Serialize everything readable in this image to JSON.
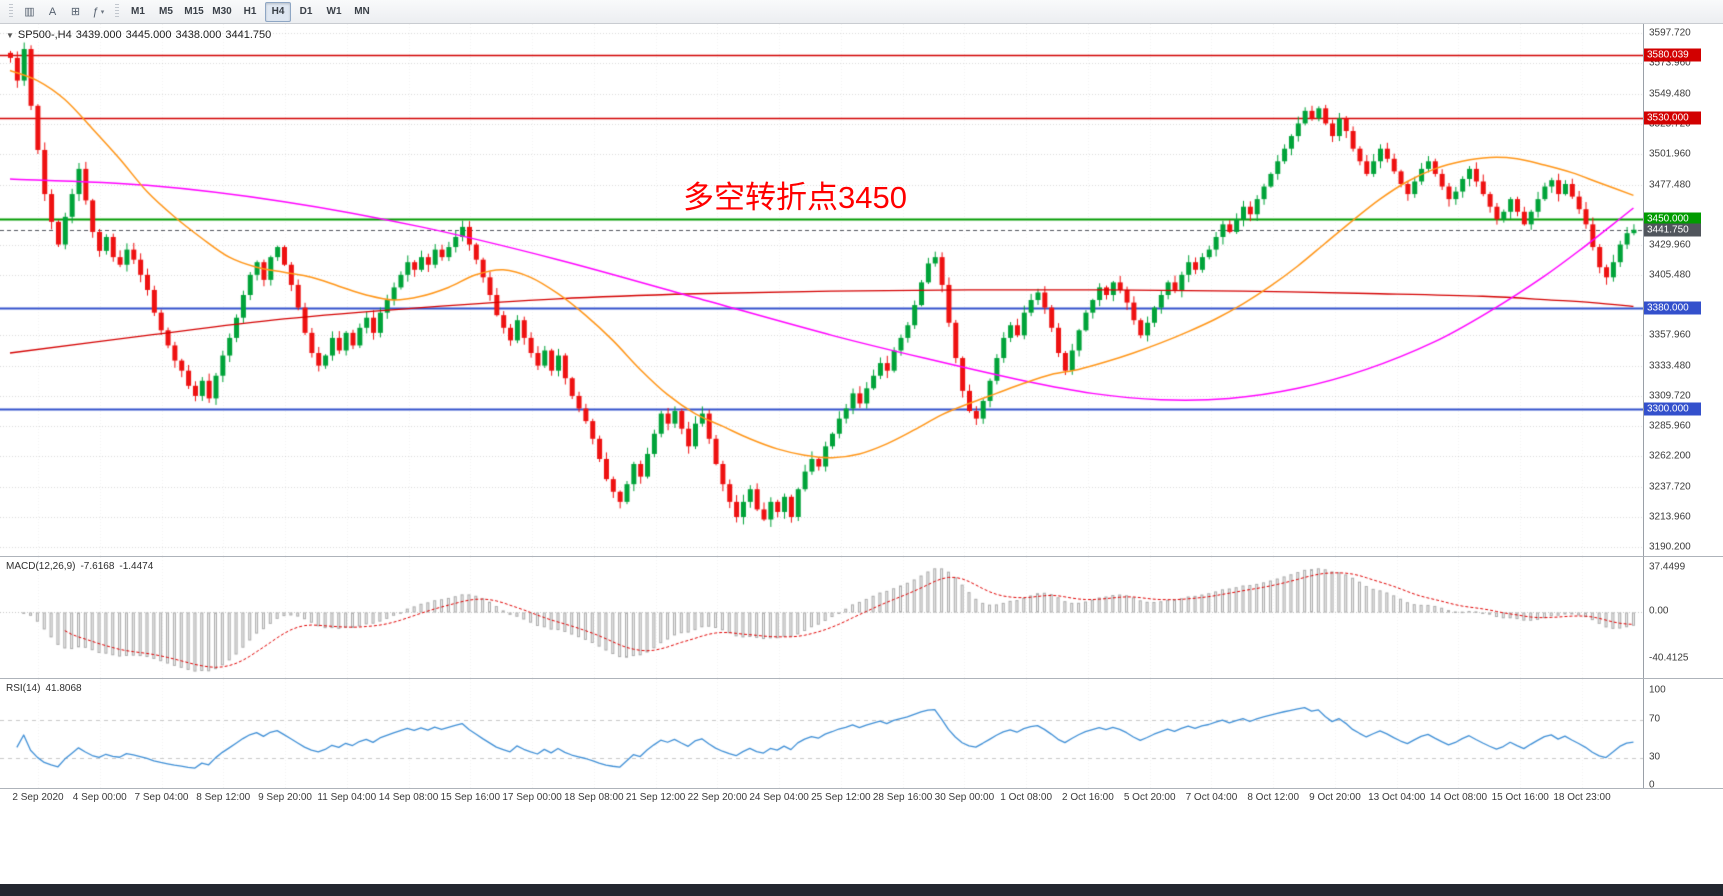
{
  "colors": {
    "up_candle": "#00a339",
    "down_candle": "#ee1111",
    "ma_fast": "#ff9517",
    "ma_medium": "#ff00ff",
    "ma_slow": "#d40000",
    "macd_histogram": "#adadad",
    "macd_signal": "#e00000",
    "rsi_line": "#3f8fd6",
    "resistance_line": "#d20000",
    "pivot_line": "#009b00",
    "support_line": "#3350cc",
    "current_price_tag": "#50555c",
    "annotation_text": "#ff0000"
  },
  "toolbar": {
    "icons": [
      {
        "name": "charts-icon",
        "glyph": "▥"
      },
      {
        "name": "text-cursor-icon",
        "glyph": "A"
      },
      {
        "name": "chart-window-icon",
        "glyph": "⊞"
      },
      {
        "name": "indicators-icon",
        "glyph": "ƒ",
        "caret": "▾"
      }
    ],
    "timeframes": [
      "M1",
      "M5",
      "M15",
      "M30",
      "H1",
      "H4",
      "D1",
      "W1",
      "MN"
    ],
    "selected_timeframe": "H4"
  },
  "chart_data": {
    "type": "candlestick",
    "symbol": "SP500-,H4",
    "ohlc_display": {
      "open": "3439.000",
      "high": "3445.000",
      "low": "3438.000",
      "close": "3441.750"
    },
    "annotation": "多空转折点3450",
    "y_axis": {
      "max": 3597.72,
      "min": 3190.2,
      "ticks": [
        "3597.720",
        "3573.960",
        "3549.480",
        "3525.720",
        "3501.960",
        "3477.480",
        "3429.960",
        "3405.480",
        "3357.960",
        "3333.480",
        "3309.720",
        "3285.960",
        "3262.200",
        "3237.720",
        "3213.960",
        "3190.200"
      ]
    },
    "x_axis": {
      "labels": [
        "2 Sep 2020",
        "4 Sep 00:00",
        "7 Sep 04:00",
        "8 Sep 12:00",
        "9 Sep 20:00",
        "11 Sep 04:00",
        "14 Sep 08:00",
        "15 Sep 16:00",
        "17 Sep 00:00",
        "18 Sep 08:00",
        "21 Sep 12:00",
        "22 Sep 20:00",
        "24 Sep 04:00",
        "25 Sep 12:00",
        "28 Sep 16:00",
        "30 Sep 00:00",
        "1 Oct 08:00",
        "2 Oct 16:00",
        "5 Oct 20:00",
        "7 Oct 04:00",
        "8 Oct 12:00",
        "9 Oct 20:00",
        "13 Oct 04:00",
        "14 Oct 08:00",
        "15 Oct 16:00",
        "18 Oct 23:00"
      ]
    },
    "levels": [
      {
        "label": "3580.039",
        "value": 3580.039,
        "color": "#d20000",
        "style": "solid",
        "width": 1.6
      },
      {
        "label": "3530.000",
        "value": 3530.0,
        "color": "#d20000",
        "style": "solid",
        "width": 1.6
      },
      {
        "label": "3450.000",
        "value": 3450.0,
        "color": "#009b00",
        "style": "solid",
        "width": 1.8
      },
      {
        "label": "3441.750",
        "value": 3441.75,
        "color": "#50555c",
        "style": "dashed",
        "width": 1
      },
      {
        "label": "3380.000",
        "value": 3380.0,
        "color": "#3350cc",
        "style": "solid",
        "width": 1.8
      },
      {
        "label": "3300.000",
        "value": 3300.0,
        "color": "#3350cc",
        "style": "solid",
        "width": 1.8
      }
    ],
    "closes": [
      3578,
      3560,
      3585,
      3540,
      3505,
      3470,
      3448,
      3430,
      3452,
      3470,
      3490,
      3465,
      3440,
      3425,
      3436,
      3420,
      3414,
      3426,
      3418,
      3406,
      3394,
      3376,
      3362,
      3350,
      3338,
      3330,
      3318,
      3310,
      3322,
      3308,
      3326,
      3342,
      3356,
      3372,
      3390,
      3406,
      3416,
      3402,
      3420,
      3428,
      3414,
      3398,
      3380,
      3360,
      3344,
      3334,
      3342,
      3356,
      3346,
      3360,
      3350,
      3364,
      3372,
      3360,
      3376,
      3386,
      3396,
      3406,
      3416,
      3410,
      3420,
      3414,
      3426,
      3420,
      3428,
      3436,
      3444,
      3430,
      3418,
      3404,
      3390,
      3374,
      3364,
      3354,
      3370,
      3356,
      3344,
      3334,
      3346,
      3330,
      3342,
      3324,
      3310,
      3300,
      3290,
      3276,
      3260,
      3244,
      3234,
      3226,
      3240,
      3256,
      3246,
      3264,
      3280,
      3296,
      3288,
      3298,
      3284,
      3270,
      3288,
      3296,
      3276,
      3256,
      3240,
      3226,
      3214,
      3226,
      3236,
      3220,
      3212,
      3226,
      3218,
      3230,
      3214,
      3236,
      3250,
      3260,
      3254,
      3270,
      3280,
      3292,
      3300,
      3312,
      3304,
      3316,
      3326,
      3336,
      3330,
      3346,
      3356,
      3366,
      3382,
      3400,
      3415,
      3420,
      3398,
      3368,
      3340,
      3314,
      3298,
      3292,
      3306,
      3322,
      3340,
      3356,
      3366,
      3358,
      3376,
      3386,
      3392,
      3380,
      3364,
      3344,
      3330,
      3346,
      3362,
      3376,
      3386,
      3396,
      3390,
      3400,
      3394,
      3384,
      3370,
      3358,
      3368,
      3380,
      3390,
      3400,
      3394,
      3406,
      3416,
      3410,
      3420,
      3426,
      3436,
      3446,
      3440,
      3450,
      3460,
      3454,
      3466,
      3476,
      3486,
      3496,
      3506,
      3516,
      3526,
      3536,
      3530,
      3538,
      3526,
      3516,
      3530,
      3520,
      3506,
      3496,
      3486,
      3496,
      3506,
      3498,
      3488,
      3478,
      3470,
      3480,
      3490,
      3496,
      3486,
      3476,
      3466,
      3472,
      3482,
      3490,
      3480,
      3470,
      3460,
      3450,
      3456,
      3466,
      3456,
      3446,
      3456,
      3466,
      3476,
      3481,
      3470,
      3478,
      3468,
      3458,
      3446,
      3428,
      3412,
      3404,
      3416,
      3430,
      3439,
      3441.75
    ],
    "moving_averages": [
      {
        "name": "ma-slow",
        "color": "#d40000",
        "width": 1.3,
        "points": [
          [
            0,
            3344
          ],
          [
            20,
            3358
          ],
          [
            40,
            3371
          ],
          [
            60,
            3380
          ],
          [
            80,
            3387
          ],
          [
            100,
            3391
          ],
          [
            120,
            3393
          ],
          [
            140,
            3394
          ],
          [
            160,
            3394
          ],
          [
            180,
            3393
          ],
          [
            200,
            3391
          ],
          [
            215,
            3389
          ],
          [
            225,
            3386
          ],
          [
            231,
            3384
          ],
          [
            237,
            3381
          ]
        ]
      },
      {
        "name": "ma-medium",
        "color": "#ff00ff",
        "width": 1.5,
        "points": [
          [
            0,
            3482
          ],
          [
            20,
            3477
          ],
          [
            40,
            3464
          ],
          [
            60,
            3444
          ],
          [
            80,
            3418
          ],
          [
            100,
            3388
          ],
          [
            120,
            3358
          ],
          [
            135,
            3338
          ],
          [
            148,
            3322
          ],
          [
            158,
            3312
          ],
          [
            168,
            3307
          ],
          [
            178,
            3308
          ],
          [
            188,
            3316
          ],
          [
            198,
            3331
          ],
          [
            208,
            3353
          ],
          [
            216,
            3377
          ],
          [
            224,
            3405
          ],
          [
            230,
            3429
          ],
          [
            234,
            3446
          ],
          [
            237,
            3459
          ]
        ]
      },
      {
        "name": "ma-fast",
        "color": "#ff9517",
        "width": 1.5,
        "points": [
          [
            0,
            3568
          ],
          [
            4,
            3560
          ],
          [
            8,
            3545
          ],
          [
            12,
            3522
          ],
          [
            16,
            3498
          ],
          [
            20,
            3472
          ],
          [
            24,
            3452
          ],
          [
            28,
            3435
          ],
          [
            32,
            3420
          ],
          [
            36,
            3412
          ],
          [
            40,
            3408
          ],
          [
            44,
            3404
          ],
          [
            48,
            3397
          ],
          [
            52,
            3390
          ],
          [
            56,
            3386
          ],
          [
            60,
            3389
          ],
          [
            64,
            3396
          ],
          [
            68,
            3406
          ],
          [
            72,
            3410
          ],
          [
            76,
            3404
          ],
          [
            80,
            3391
          ],
          [
            84,
            3374
          ],
          [
            88,
            3354
          ],
          [
            92,
            3331
          ],
          [
            96,
            3311
          ],
          [
            100,
            3296
          ],
          [
            104,
            3286
          ],
          [
            108,
            3276
          ],
          [
            112,
            3268
          ],
          [
            116,
            3263
          ],
          [
            120,
            3261
          ],
          [
            124,
            3264
          ],
          [
            128,
            3272
          ],
          [
            132,
            3283
          ],
          [
            136,
            3295
          ],
          [
            140,
            3304
          ],
          [
            144,
            3312
          ],
          [
            148,
            3320
          ],
          [
            152,
            3327
          ],
          [
            156,
            3331
          ],
          [
            160,
            3337
          ],
          [
            164,
            3344
          ],
          [
            168,
            3352
          ],
          [
            172,
            3361
          ],
          [
            176,
            3371
          ],
          [
            180,
            3383
          ],
          [
            184,
            3397
          ],
          [
            188,
            3413
          ],
          [
            192,
            3431
          ],
          [
            196,
            3449
          ],
          [
            200,
            3466
          ],
          [
            204,
            3480
          ],
          [
            208,
            3490
          ],
          [
            212,
            3496
          ],
          [
            216,
            3499
          ],
          [
            220,
            3498
          ],
          [
            224,
            3493
          ],
          [
            228,
            3487
          ],
          [
            232,
            3479
          ],
          [
            237,
            3469
          ]
        ]
      }
    ],
    "indicators": {
      "macd": {
        "name": "MACD(12,26,9)",
        "values": [
          "-7.6168",
          "-1.4474"
        ],
        "fast": 12,
        "slow": 26,
        "signal": 9,
        "axis_labels": [
          "37.4499",
          "0.00",
          "-40.4125"
        ],
        "max": 37.4499,
        "min": -40.4125
      },
      "rsi": {
        "name": "RSI(14)",
        "value": "41.8068",
        "period": 14,
        "axis_labels": [
          "100",
          "70",
          "30",
          "0"
        ],
        "levels": [
          70,
          30
        ]
      }
    }
  }
}
